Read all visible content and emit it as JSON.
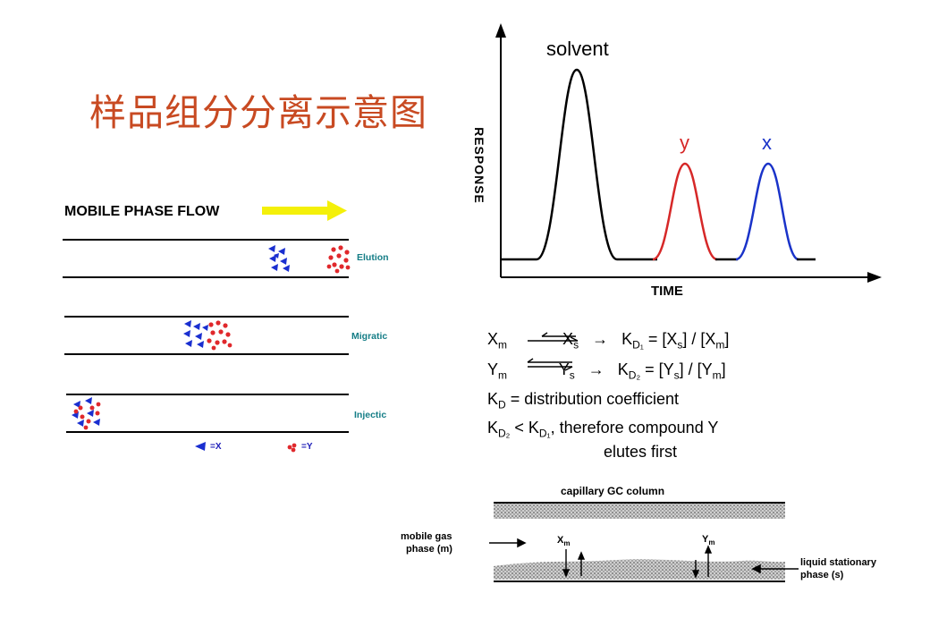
{
  "title": "样品组分分离示意图",
  "separation_panel": {
    "flow_label": "MOBILE PHASE FLOW",
    "bands": [
      {
        "label": "Elution"
      },
      {
        "label": "Migratic"
      },
      {
        "label": "Injectic"
      }
    ],
    "legend": {
      "x_label": "=X",
      "y_label": "=Y"
    },
    "colors": {
      "x": "#1a2fd0",
      "y": "#e0282c",
      "arrow": "#f4f00a"
    }
  },
  "chromatogram": {
    "y_axis_label": "RESPONSE",
    "x_axis_label": "TIME",
    "peaks": [
      {
        "name": "solvent",
        "color": "#000000"
      },
      {
        "name": "y",
        "color": "#d62828"
      },
      {
        "name": "x",
        "color": "#1a33c9"
      }
    ]
  },
  "equations": {
    "eq1": {
      "left": "X",
      "left_sub": "m",
      "right": "X",
      "right_sub": "s",
      "k": "K",
      "k_sub": "D₁",
      "expr": "= [X",
      "expr_sub1": "s",
      "mid": "] / [X",
      "expr_sub2": "m",
      "end": "]"
    },
    "eq2": {
      "left": "Y",
      "left_sub": "m",
      "right": "Y",
      "right_sub": "s",
      "k": "K",
      "k_sub": "D₂",
      "expr": "= [Y",
      "expr_sub1": "s",
      "mid": "] / [Y",
      "expr_sub2": "m",
      "end": "]"
    },
    "kd_k": "K",
    "kd_sub": "D",
    "kd_rest": " = distribution coefficient",
    "cmp_k1": "K",
    "cmp_sub1": "D₂",
    "cmp_mid": " < K",
    "cmp_sub2": "D₁",
    "cmp_rest": ", therefore compound Y",
    "cmp_line2": "elutes first",
    "arrow": "→"
  },
  "column_diagram": {
    "title": "capillary GC column",
    "mobile_label_1": "mobile gas",
    "mobile_label_2": "phase (m)",
    "stationary_label_1": "liquid stationary",
    "stationary_label_2": "phase (s)",
    "xm": "X",
    "xm_sub": "m",
    "ym": "Y",
    "ym_sub": "m"
  }
}
